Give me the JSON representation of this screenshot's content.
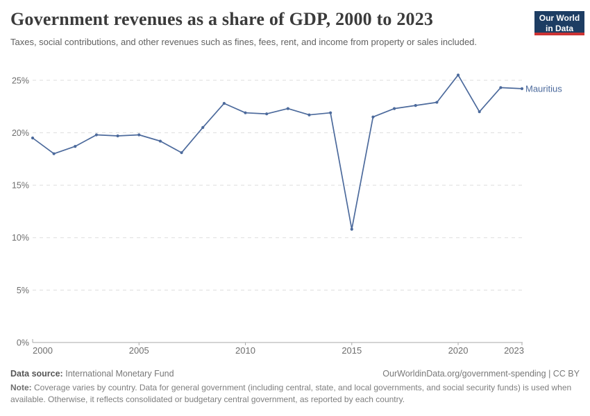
{
  "header": {
    "title": "Government revenues as a share of GDP, 2000 to 2023",
    "subtitle": "Taxes, social contributions, and other revenues such as fines, fees, rent, and income from property or sales included.",
    "logo": {
      "line1": "Our World",
      "line2": "in Data",
      "bg_color": "#1d3d63",
      "accent_color": "#cc3333"
    }
  },
  "chart_data": {
    "type": "line",
    "title": "Government revenues as a share of GDP, 2000 to 2023",
    "unit": "%",
    "x": [
      2000,
      2001,
      2002,
      2003,
      2004,
      2005,
      2006,
      2007,
      2008,
      2009,
      2010,
      2011,
      2012,
      2013,
      2014,
      2015,
      2016,
      2017,
      2018,
      2019,
      2020,
      2021,
      2022,
      2023
    ],
    "series": [
      {
        "name": "Mauritius",
        "color": "#4c6a9c",
        "values": [
          19.5,
          18.0,
          18.7,
          19.8,
          19.7,
          19.8,
          19.2,
          18.1,
          20.5,
          22.8,
          21.9,
          21.8,
          22.3,
          21.7,
          21.9,
          10.8,
          21.5,
          22.3,
          22.6,
          22.9,
          25.5,
          22.0,
          24.3,
          24.2
        ]
      }
    ],
    "xlim": [
      2000,
      2023
    ],
    "ylim": [
      0,
      26
    ],
    "x_ticks": [
      {
        "x": 2000,
        "label": "2000",
        "align": "start"
      },
      {
        "x": 2005,
        "label": "2005",
        "align": "middle"
      },
      {
        "x": 2010,
        "label": "2010",
        "align": "middle"
      },
      {
        "x": 2015,
        "label": "2015",
        "align": "middle"
      },
      {
        "x": 2020,
        "label": "2020",
        "align": "middle"
      },
      {
        "x": 2023,
        "label": "2023",
        "align": "end"
      }
    ],
    "y_ticks": [
      {
        "v": 0,
        "label": "0%"
      },
      {
        "v": 5,
        "label": "5%"
      },
      {
        "v": 10,
        "label": "10%"
      },
      {
        "v": 15,
        "label": "15%"
      },
      {
        "v": 20,
        "label": "20%"
      },
      {
        "v": 25,
        "label": "25%"
      }
    ],
    "grid": "horizontal-dashed",
    "legend": "series-label-at-line-end",
    "colors": {
      "gridline": "#dedede",
      "axis": "#a8a8a8",
      "tick_text": "#6e6e6e"
    }
  },
  "footer": {
    "data_source_label": "Data source:",
    "data_source_value": "International Monetary Fund",
    "attribution": "OurWorldinData.org/government-spending | CC BY",
    "note_label": "Note:",
    "note_text": "Coverage varies by country. Data for general government (including central, state, and local governments, and social security funds) is used when available. Otherwise, it reflects consolidated or budgetary central government, as reported by each country."
  }
}
